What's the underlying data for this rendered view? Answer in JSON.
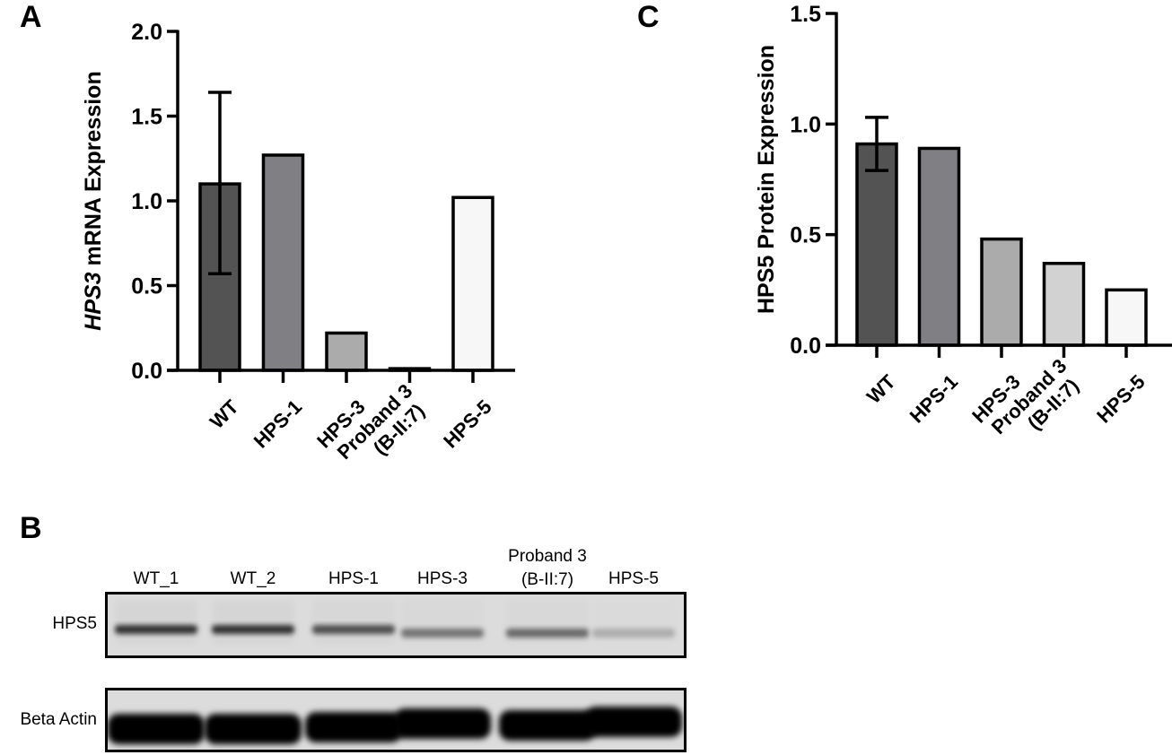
{
  "panels": {
    "A": {
      "letter": "A"
    },
    "B": {
      "letter": "B"
    },
    "C": {
      "letter": "C"
    }
  },
  "chart_data": [
    {
      "id": "A",
      "type": "bar",
      "title": "",
      "xlabel": "",
      "ylabel": "HPS3 mRNA Expression",
      "ylabel_italic_part": "HPS3",
      "ylabel_rest": " mRNA Expression",
      "ylim": [
        0,
        2.0
      ],
      "yticks": [
        "0.0",
        "0.5",
        "1.0",
        "1.5",
        "2.0"
      ],
      "ytick_values": [
        0,
        0.5,
        1.0,
        1.5,
        2.0
      ],
      "categories": [
        "WT",
        "HPS-1",
        "HPS-3",
        "Proband 3 (B-II:7)",
        "HPS-5"
      ],
      "category_lines": [
        [
          "WT"
        ],
        [
          "HPS-1"
        ],
        [
          "HPS-3"
        ],
        [
          "Proband 3",
          "(B-II:7)"
        ],
        [
          "HPS-5"
        ]
      ],
      "values": [
        1.1,
        1.27,
        0.22,
        0.01,
        1.02
      ],
      "error_bars": [
        [
          0.57,
          1.64
        ],
        null,
        null,
        null,
        null
      ],
      "colors": [
        "#535353",
        "#808084",
        "#ababab",
        "#d2d2d2",
        "#f7f7f7"
      ],
      "grid": false,
      "legend": null
    },
    {
      "id": "C",
      "type": "bar",
      "title": "",
      "xlabel": "",
      "ylabel": "HPS5 Protein Expression",
      "ylim": [
        0,
        1.5
      ],
      "yticks": [
        "0.0",
        "0.5",
        "1.0",
        "1.5"
      ],
      "ytick_values": [
        0,
        0.5,
        1.0,
        1.5
      ],
      "categories": [
        "WT",
        "HPS-1",
        "HPS-3",
        "Proband 3 (B-II:7)",
        "HPS-5"
      ],
      "category_lines": [
        [
          "WT"
        ],
        [
          "HPS-1"
        ],
        [
          "HPS-3"
        ],
        [
          "Proband 3",
          "(B-II:7)"
        ],
        [
          "HPS-5"
        ]
      ],
      "values": [
        0.91,
        0.89,
        0.48,
        0.37,
        0.25
      ],
      "error_bars": [
        [
          0.79,
          1.03
        ],
        null,
        null,
        null,
        null
      ],
      "colors": [
        "#535353",
        "#808084",
        "#ababab",
        "#d2d2d2",
        "#f7f7f7"
      ],
      "grid": false,
      "legend": null
    }
  ],
  "western_blot": {
    "lanes": [
      {
        "label": "WT_1",
        "label2": ""
      },
      {
        "label": "WT_2",
        "label2": ""
      },
      {
        "label": "HPS-1",
        "label2": ""
      },
      {
        "label": "HPS-3",
        "label2": ""
      },
      {
        "label": "(B-II:7)",
        "label2": "Proband 3"
      },
      {
        "label": "HPS-5",
        "label2": ""
      }
    ],
    "rows": [
      {
        "label": "HPS5",
        "band_intensity": [
          0.85,
          0.85,
          0.7,
          0.5,
          0.55,
          0.2
        ]
      },
      {
        "label": "Beta Actin",
        "band_intensity": [
          1,
          1,
          1,
          1,
          1,
          1
        ]
      }
    ]
  }
}
